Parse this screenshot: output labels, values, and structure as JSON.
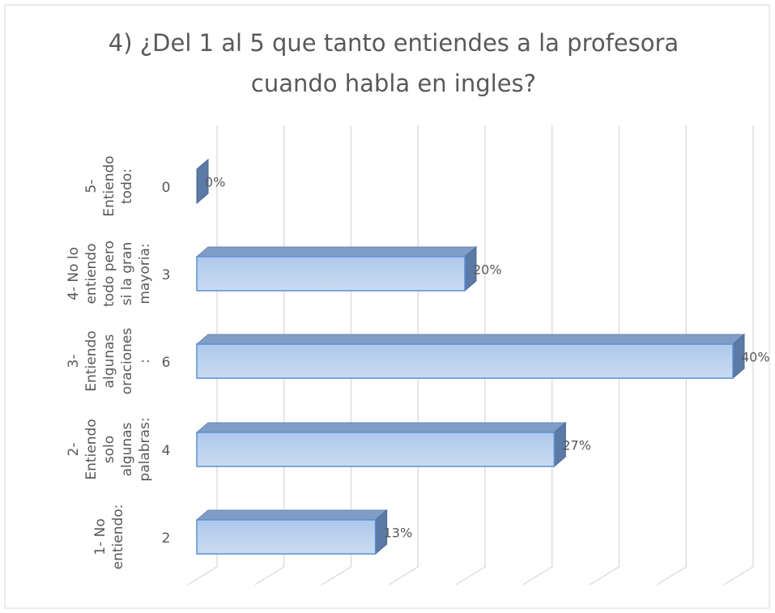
{
  "chart_data": {
    "type": "bar3d-horizontal",
    "title": "4) ¿Del 1 al 5 que tanto entiendes a la profesora cuando habla en ingles?",
    "categories": [
      "1- No entiendo:",
      "2- Entiendo solo algunas palabras:",
      "3- Entiendo algunas oraciones :",
      "4- No lo entiendo todo pero si la gran mayoria:",
      "5- Entiendo todo:"
    ],
    "subcategories": [
      2,
      4,
      6,
      3,
      0
    ],
    "values": [
      13.33,
      26.67,
      40,
      20,
      0
    ],
    "value_labels": [
      "13%",
      "27%",
      "40%",
      "20%",
      "0%"
    ],
    "color": "#aec8eb",
    "xlim": [
      0,
      40
    ],
    "xticks": [
      0,
      5,
      10,
      15,
      20,
      25,
      30,
      35,
      40
    ],
    "grid": true
  }
}
